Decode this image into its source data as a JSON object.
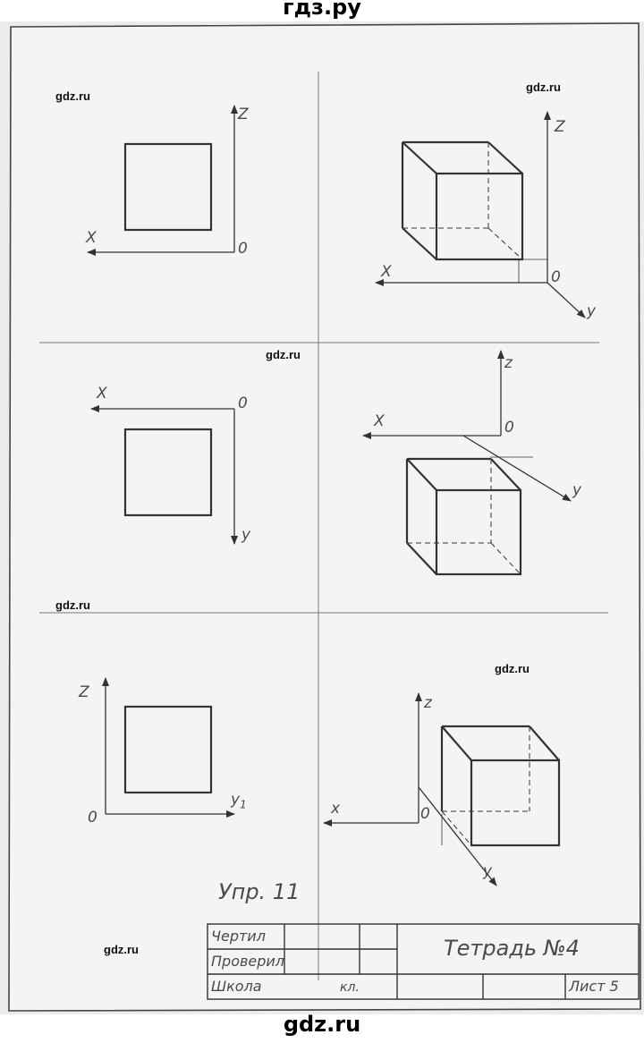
{
  "site": {
    "header": "гдз.ру",
    "footer": "gdz.ru",
    "watermark": "gdz.ru"
  },
  "panels": {
    "front": {
      "left": {
        "axis_h": "X",
        "axis_v": "Z",
        "origin": "0"
      },
      "right": {
        "axis_h": "X",
        "axis_v": "Z",
        "axis_d": "y",
        "origin": "0"
      }
    },
    "top": {
      "left": {
        "axis_h": "X",
        "axis_v": "y",
        "origin": "0"
      },
      "right": {
        "axis_h": "X",
        "axis_v": "z",
        "axis_d": "y",
        "origin": "0"
      }
    },
    "side": {
      "left": {
        "axis_h": "y",
        "axis_h_sub": "1",
        "axis_v": "Z",
        "origin": "0"
      },
      "right": {
        "axis_h": "x",
        "axis_v": "z",
        "axis_d": "y",
        "origin": "0"
      }
    }
  },
  "exercise": "Упр. 11",
  "title_block": {
    "drew": "Чертил",
    "checked": "Проверил",
    "school": "Школа",
    "class": "кл.",
    "title": "Тетрадь №4",
    "sheet": "Лист 5"
  }
}
